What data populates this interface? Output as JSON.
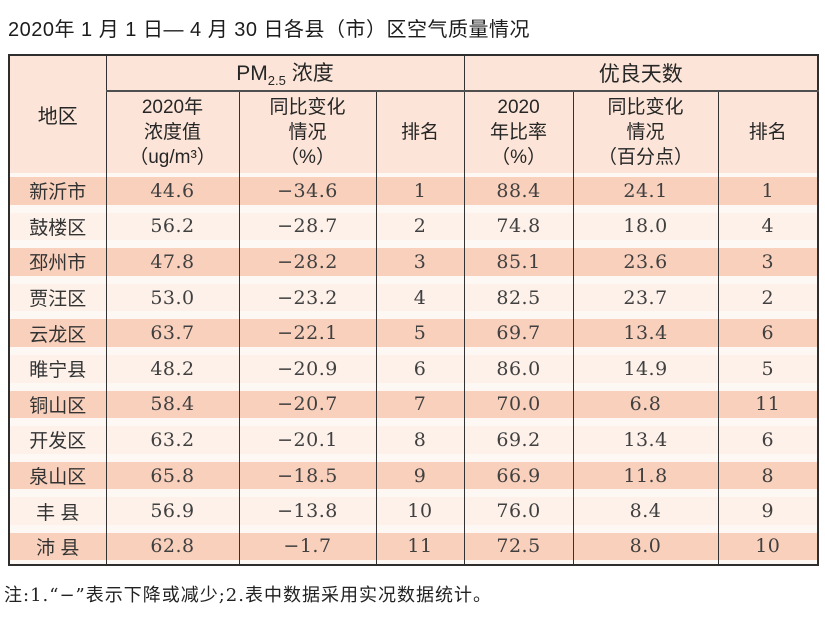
{
  "page": {
    "title": "2020年 1 月 1 日— 4 月 30 日各县（市）区空气质量情况",
    "note": "注:1.“−”表示下降或减少;2.表中数据采用实况数据统计。"
  },
  "colors": {
    "header_bg": "#fce5d8",
    "row_dark": "#f9d0bc",
    "row_light": "#fdf1ea",
    "row_gap": "#fef8f4",
    "border_dark": "#333333"
  },
  "table": {
    "corner_header": "地区",
    "group_pm": {
      "main": "PM",
      "sub": "2.5",
      "tail": " 浓度"
    },
    "group_good": "优良天数",
    "subheaders": [
      "2020年\n浓度值\n（ug/m³）",
      "同比变化\n情况\n（%）",
      "排名",
      "2020\n年比率\n（%）",
      "同比变化\n情况\n（百分点）",
      "排名"
    ],
    "rows": [
      {
        "region": "新沂市",
        "pm_value": "44.6",
        "pm_change": "−34.6",
        "pm_rank": "1",
        "good_ratio": "88.4",
        "good_change": "24.1",
        "good_rank": "1"
      },
      {
        "region": "鼓楼区",
        "pm_value": "56.2",
        "pm_change": "−28.7",
        "pm_rank": "2",
        "good_ratio": "74.8",
        "good_change": "18.0",
        "good_rank": "4"
      },
      {
        "region": "邳州市",
        "pm_value": "47.8",
        "pm_change": "−28.2",
        "pm_rank": "3",
        "good_ratio": "85.1",
        "good_change": "23.6",
        "good_rank": "3"
      },
      {
        "region": "贾汪区",
        "pm_value": "53.0",
        "pm_change": "−23.2",
        "pm_rank": "4",
        "good_ratio": "82.5",
        "good_change": "23.7",
        "good_rank": "2"
      },
      {
        "region": "云龙区",
        "pm_value": "63.7",
        "pm_change": "−22.1",
        "pm_rank": "5",
        "good_ratio": "69.7",
        "good_change": "13.4",
        "good_rank": "6"
      },
      {
        "region": "睢宁县",
        "pm_value": "48.2",
        "pm_change": "−20.9",
        "pm_rank": "6",
        "good_ratio": "86.0",
        "good_change": "14.9",
        "good_rank": "5"
      },
      {
        "region": "铜山区",
        "pm_value": "58.4",
        "pm_change": "−20.7",
        "pm_rank": "7",
        "good_ratio": "70.0",
        "good_change": "6.8",
        "good_rank": "11"
      },
      {
        "region": "开发区",
        "pm_value": "63.2",
        "pm_change": "−20.1",
        "pm_rank": "8",
        "good_ratio": "69.2",
        "good_change": "13.4",
        "good_rank": "6"
      },
      {
        "region": "泉山区",
        "pm_value": "65.8",
        "pm_change": "−18.5",
        "pm_rank": "9",
        "good_ratio": "66.9",
        "good_change": "11.8",
        "good_rank": "8"
      },
      {
        "region": "丰 县",
        "pm_value": "56.9",
        "pm_change": "−13.8",
        "pm_rank": "10",
        "good_ratio": "76.0",
        "good_change": "8.4",
        "good_rank": "9"
      },
      {
        "region": "沛 县",
        "pm_value": "62.8",
        "pm_change": "−1.7",
        "pm_rank": "11",
        "good_ratio": "72.5",
        "good_change": "8.0",
        "good_rank": "10"
      }
    ]
  }
}
